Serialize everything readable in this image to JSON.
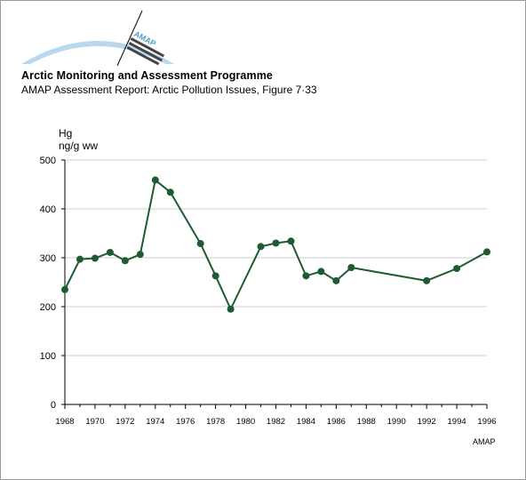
{
  "header": {
    "logo_text": "AMAP",
    "organization": "Arctic Monitoring and Assessment Programme",
    "report": "AMAP Assessment Report: Arctic Pollution Issues, Figure 7·33"
  },
  "footer": {
    "credit": "AMAP"
  },
  "colors": {
    "series": "#1e5a32",
    "grid": "#cfcfcf",
    "logo_arc": "#b9d8ee"
  },
  "chart_data": {
    "type": "line",
    "title": "",
    "ylabel_line1": "Hg",
    "ylabel_line2": "ng/g ww",
    "xlabel": "",
    "xlim": [
      1968,
      1996
    ],
    "ylim": [
      0,
      500
    ],
    "x_ticks": [
      1968,
      1970,
      1972,
      1974,
      1976,
      1978,
      1980,
      1982,
      1984,
      1986,
      1988,
      1990,
      1992,
      1994,
      1996
    ],
    "y_ticks": [
      0,
      100,
      200,
      300,
      400,
      500
    ],
    "grid": "horizontal",
    "series": [
      {
        "x": [
          1968,
          1969,
          1970,
          1971,
          1972,
          1973,
          1974,
          1975,
          1977,
          1978,
          1979,
          1981,
          1982,
          1983,
          1984,
          1985,
          1986,
          1987,
          1992,
          1994,
          1996
        ],
        "y": [
          235,
          297,
          299,
          311,
          294,
          307,
          459,
          434,
          329,
          263,
          195,
          323,
          330,
          334,
          263,
          272,
          253,
          280,
          253,
          278,
          312
        ]
      }
    ]
  }
}
